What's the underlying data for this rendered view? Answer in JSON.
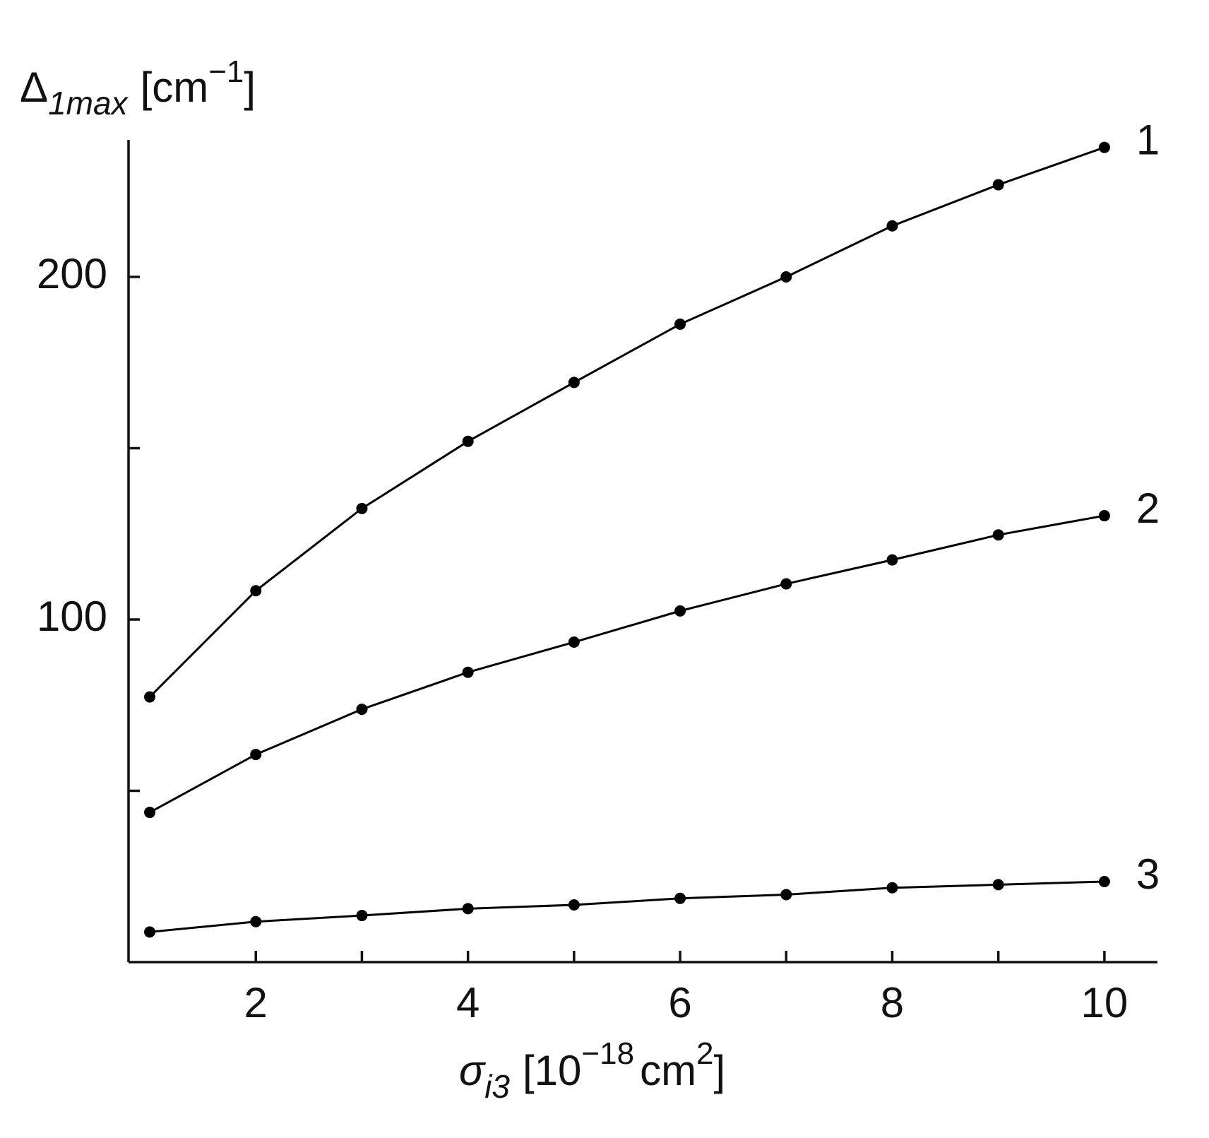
{
  "chart_data": {
    "type": "line",
    "x_label": {
      "symbol": "σ",
      "subscript": "i3",
      "unit_open": "[10",
      "superscript": "−18",
      "unit_mid": "cm",
      "superscript2": "2",
      "unit_close": "]"
    },
    "y_label": {
      "symbol": "Δ",
      "subscript": "1max",
      "unit_open": "[cm",
      "superscript": "−1",
      "unit_close": "]"
    },
    "x": [
      1,
      2,
      3,
      4,
      5,
      6,
      7,
      8,
      9,
      10
    ],
    "series": [
      {
        "name": "1",
        "color": "#000000",
        "values": [
          77.4,
          108.4,
          132.4,
          152,
          169.2,
          186.2,
          200,
          214.9,
          226.9,
          237.8
        ]
      },
      {
        "name": "2",
        "color": "#000000",
        "values": [
          43.7,
          60.6,
          73.8,
          84.6,
          93.4,
          102.5,
          110.4,
          117.4,
          124.7,
          130.3
        ]
      },
      {
        "name": "3",
        "color": "#000000",
        "values": [
          8.8,
          11.8,
          13.6,
          15.6,
          16.7,
          18.6,
          19.7,
          21.7,
          22.6,
          23.5
        ]
      }
    ],
    "xlim": [
      0.8,
      10.5
    ],
    "xticks": [
      2,
      4,
      6,
      8,
      10
    ],
    "minor_xticks": [
      3,
      5,
      7,
      9
    ],
    "ylim": [
      0,
      240
    ],
    "yticks": [
      100,
      200
    ],
    "minor_yticks": [
      50,
      150
    ],
    "grid": false
  }
}
